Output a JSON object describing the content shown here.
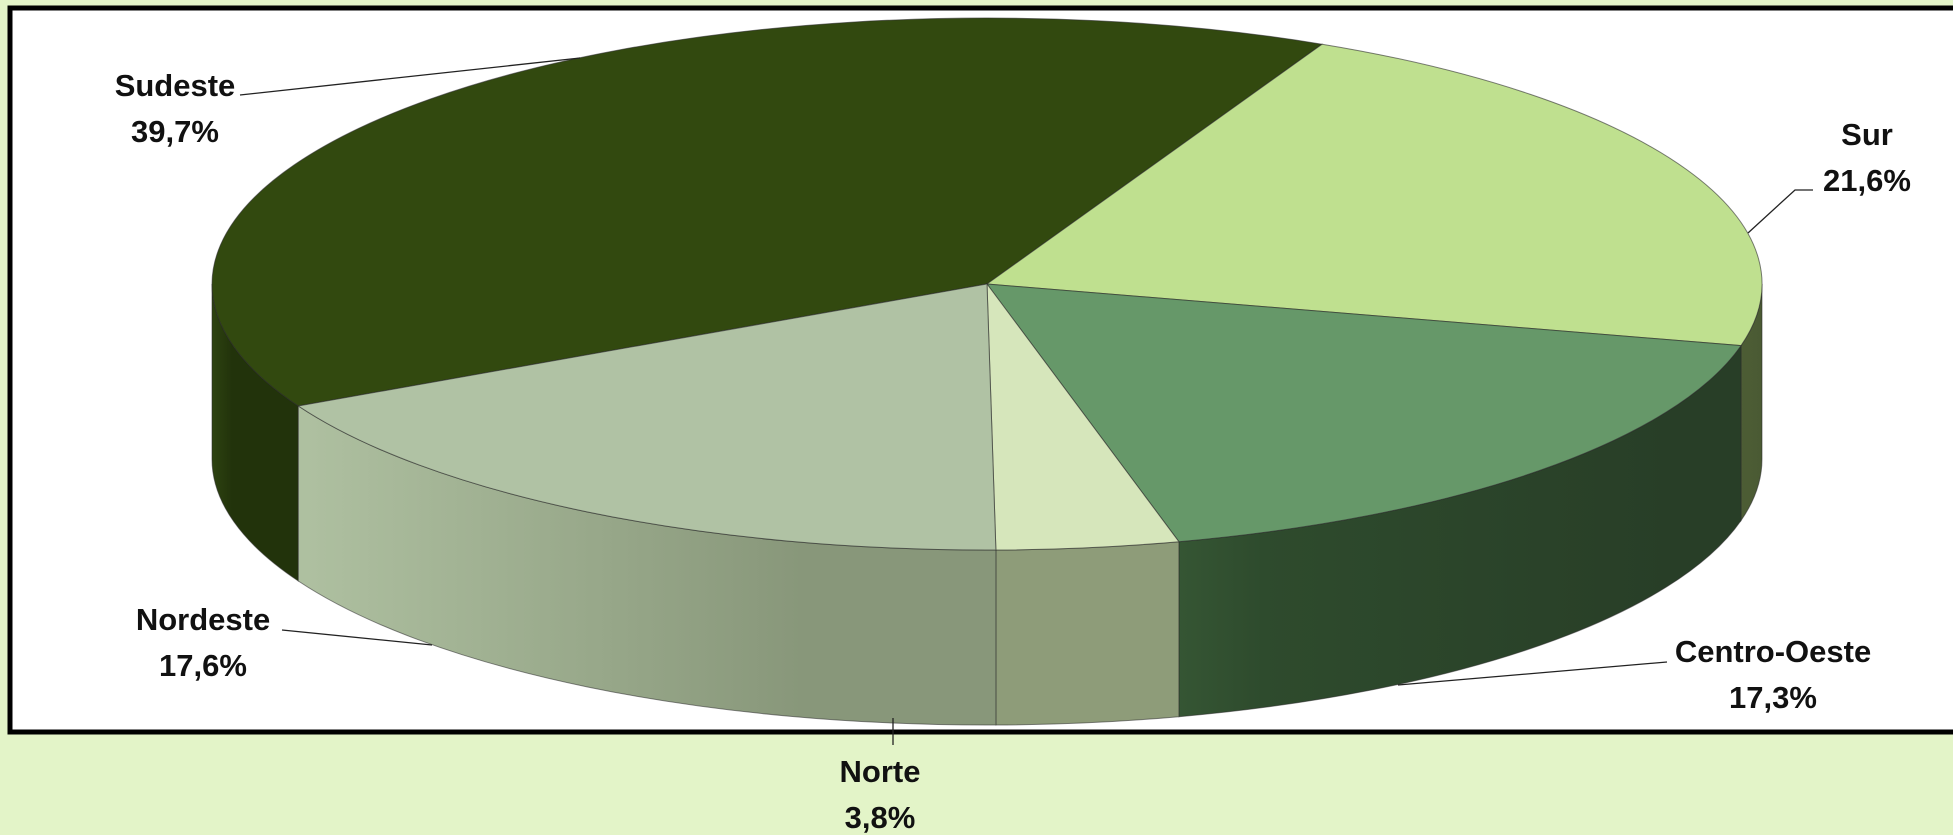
{
  "chart_data": {
    "type": "pie",
    "style": "3d-exploded-free",
    "title": "",
    "slices": [
      {
        "name": "Sudeste",
        "value": 39.7,
        "label": "39,7%",
        "color": "#32490f"
      },
      {
        "name": "Sur",
        "value": 21.6,
        "label": "21,6%",
        "color": "#bfe08f"
      },
      {
        "name": "Centro-Oeste",
        "value": 17.3,
        "label": "17,3%",
        "color": "#669869"
      },
      {
        "name": "Norte",
        "value": 3.8,
        "label": "3,8%",
        "color": "#d6e6bb"
      },
      {
        "name": "Nordeste",
        "value": 17.6,
        "label": "17,6%",
        "color": "#b0c2a4"
      }
    ],
    "legend": "none"
  },
  "colors": {
    "page_background": "#e3f4c8",
    "plot_background": "#ffffff",
    "frame": "#000000"
  }
}
